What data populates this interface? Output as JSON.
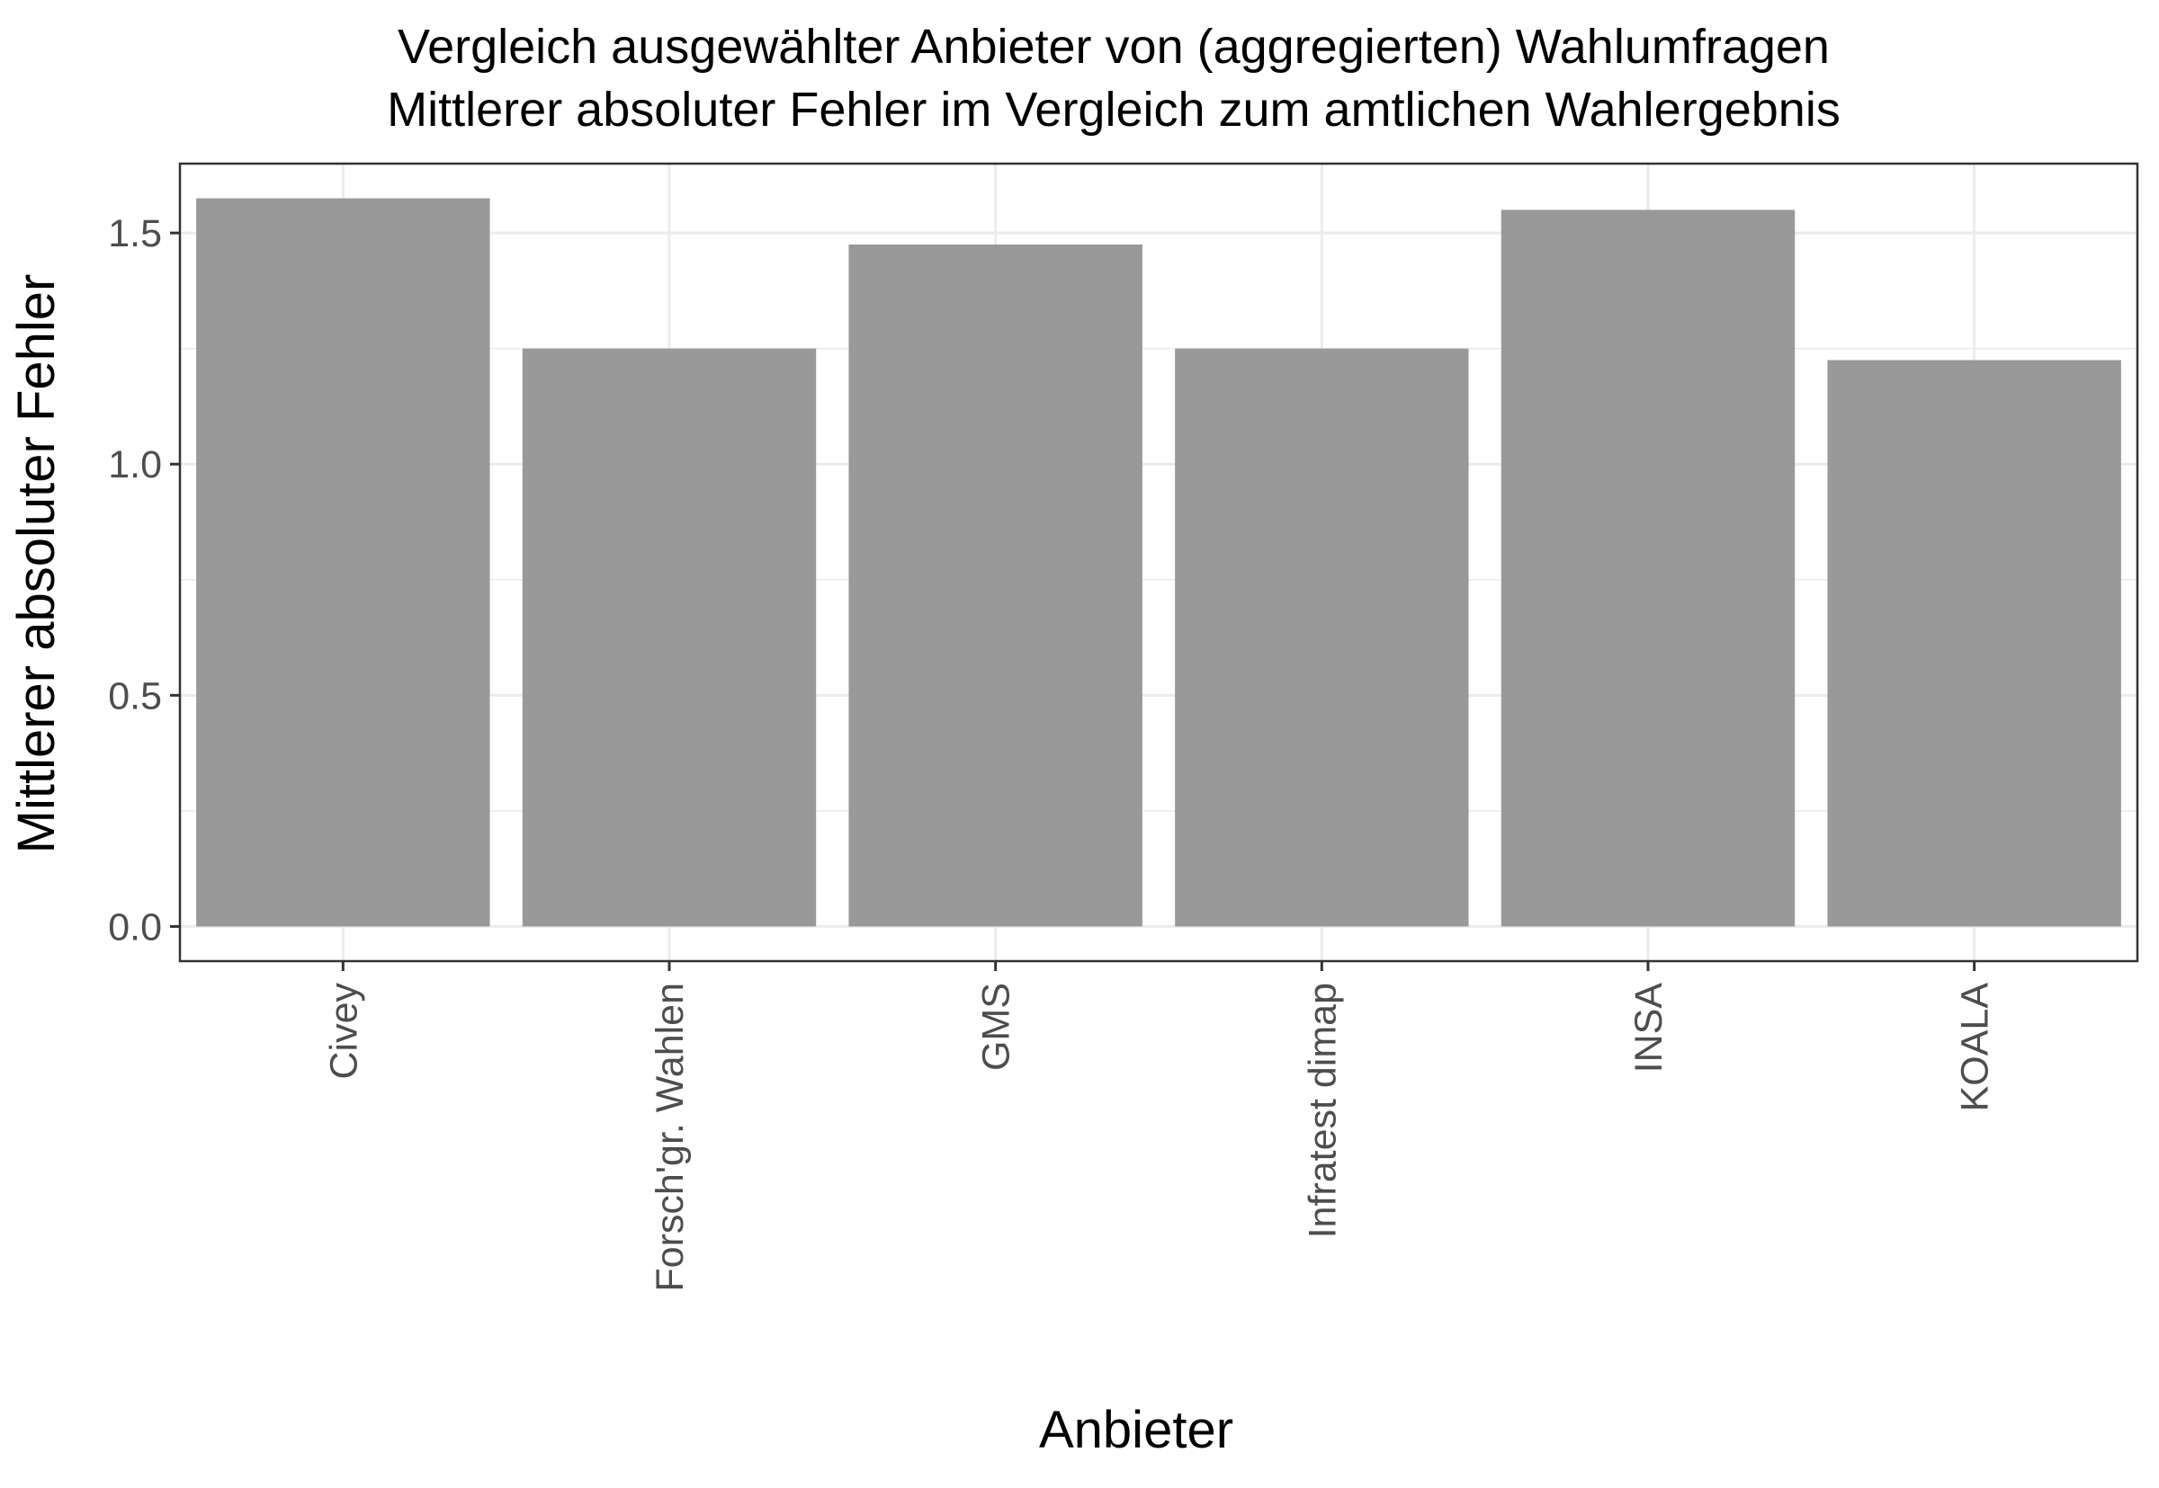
{
  "chart_data": {
    "type": "bar",
    "title": "Vergleich ausgewählter Anbieter von (aggregierten) Wahlumfragen",
    "subtitle": "Mittlerer absoluter Fehler im Vergleich zum amtlichen Wahlergebnis",
    "xlabel": "Anbieter",
    "ylabel": "Mittlerer absoluter Fehler",
    "categories": [
      "Civey",
      "Forsch'gr. Wahlen",
      "GMS",
      "Infratest dimap",
      "INSA",
      "KOALA"
    ],
    "values": [
      1.575,
      1.25,
      1.475,
      1.25,
      1.55,
      1.225
    ],
    "ylim": [
      -0.075,
      1.65
    ],
    "yticks": [
      0.0,
      0.5,
      1.0,
      1.5
    ],
    "ytick_labels": [
      "0.0",
      "0.5",
      "1.0",
      "1.5"
    ],
    "grid": true,
    "colors": {
      "bar": "#999999",
      "grid": "#ebebeb",
      "panel_border": "#333333",
      "text": "#000000",
      "tick_text": "#4d4d4d"
    }
  }
}
